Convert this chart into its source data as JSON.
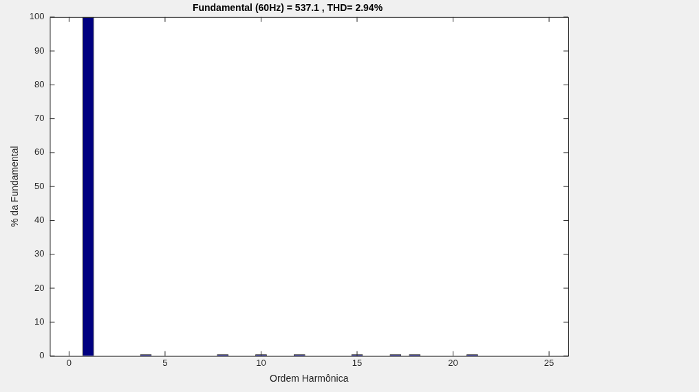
{
  "chart_data": {
    "type": "bar",
    "title": "Fundamental (60Hz) = 537.1 , THD= 2.94%",
    "xlabel": "Ordem Harmônica",
    "ylabel": "% da Fundamental",
    "x": [
      1,
      4,
      8,
      10,
      12,
      15,
      17,
      18,
      21
    ],
    "values": [
      100,
      0.5,
      0.5,
      0.5,
      0.5,
      0.5,
      0.5,
      0.5,
      0.5
    ],
    "color": "#000080",
    "xlim": [
      -1,
      26
    ],
    "xticks": [
      0,
      5,
      10,
      15,
      20,
      25
    ],
    "ylim": [
      0,
      100
    ],
    "yticks": [
      0,
      10,
      20,
      30,
      40,
      50,
      60,
      70,
      80,
      90,
      100
    ],
    "grid": false
  }
}
